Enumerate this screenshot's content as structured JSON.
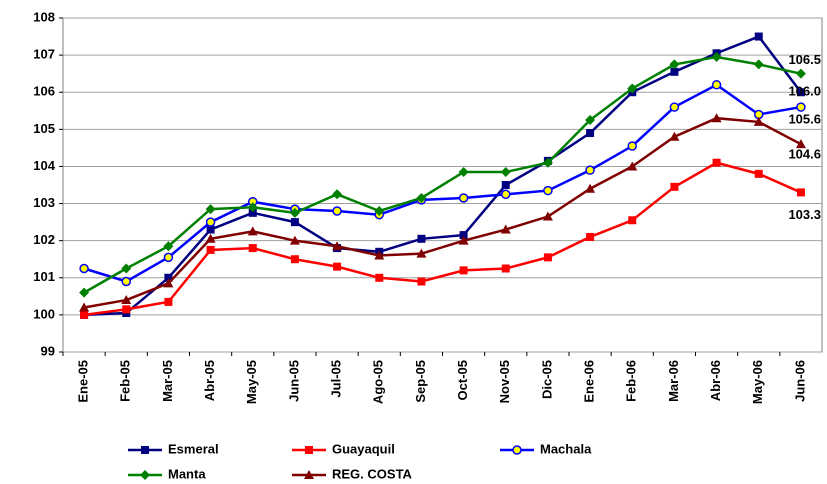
{
  "chart_data": {
    "type": "line",
    "categories": [
      "Ene-05",
      "Feb-05",
      "Mar-05",
      "Abr-05",
      "May-05",
      "Jun-05",
      "Jul-05",
      "Ago-05",
      "Sep-05",
      "Oct-05",
      "Nov-05",
      "Dic-05",
      "Ene-06",
      "Feb-06",
      "Mar-06",
      "Abr-06",
      "May-06",
      "Jun-06"
    ],
    "series": [
      {
        "name": "Esmeral",
        "color": "#000080",
        "marker": "square",
        "values": [
          100.0,
          100.05,
          101.0,
          102.3,
          102.75,
          102.5,
          101.8,
          101.7,
          102.05,
          102.15,
          103.5,
          104.15,
          104.9,
          106.0,
          106.55,
          107.05,
          107.5,
          106.0
        ],
        "value_labels": [
          null,
          null,
          null,
          null,
          null,
          null,
          null,
          null,
          null,
          null,
          null,
          null,
          null,
          null,
          null,
          null,
          null,
          "106.0"
        ]
      },
      {
        "name": "Guayaquil",
        "color": "#ff0000",
        "marker": "square",
        "values": [
          100.0,
          100.15,
          100.35,
          101.75,
          101.8,
          101.5,
          101.3,
          101.0,
          100.9,
          101.2,
          101.25,
          101.55,
          102.1,
          102.55,
          103.45,
          104.1,
          103.8,
          103.3
        ],
        "value_labels": [
          null,
          null,
          null,
          null,
          null,
          null,
          null,
          null,
          null,
          null,
          null,
          null,
          null,
          null,
          null,
          null,
          null,
          "103.3"
        ]
      },
      {
        "name": "Machala",
        "color": "#0000ff",
        "marker": "circle",
        "values": [
          101.25,
          100.9,
          101.55,
          102.5,
          103.05,
          102.85,
          102.8,
          102.7,
          103.1,
          103.15,
          103.25,
          103.35,
          103.9,
          104.55,
          105.6,
          106.2,
          105.4,
          105.6
        ],
        "value_labels": [
          null,
          null,
          null,
          null,
          null,
          null,
          null,
          null,
          null,
          null,
          null,
          null,
          null,
          null,
          null,
          null,
          null,
          "105.6"
        ]
      },
      {
        "name": "Manta",
        "color": "#008000",
        "marker": "diamond",
        "values": [
          100.6,
          101.25,
          101.85,
          102.85,
          102.9,
          102.75,
          103.25,
          102.8,
          103.15,
          103.85,
          103.85,
          104.1,
          105.25,
          106.1,
          106.75,
          106.95,
          106.75,
          106.5
        ],
        "value_labels": [
          null,
          null,
          null,
          null,
          null,
          null,
          null,
          null,
          null,
          null,
          null,
          null,
          null,
          null,
          null,
          null,
          null,
          "106.5"
        ]
      },
      {
        "name": "REG. COSTA",
        "color": "#800000",
        "marker": "triangle",
        "values": [
          100.2,
          100.4,
          100.85,
          102.05,
          102.25,
          102.0,
          101.85,
          101.6,
          101.65,
          102.0,
          102.3,
          102.65,
          103.4,
          104.0,
          104.8,
          105.3,
          105.2,
          104.6
        ],
        "value_labels": [
          null,
          null,
          null,
          null,
          null,
          null,
          null,
          null,
          null,
          null,
          null,
          null,
          null,
          null,
          null,
          null,
          null,
          "104.6"
        ]
      }
    ],
    "ylim": [
      99,
      108
    ],
    "yticks": [
      99,
      100,
      101,
      102,
      103,
      104,
      105,
      106,
      107,
      108
    ],
    "grid": true,
    "legend": "bottom"
  }
}
